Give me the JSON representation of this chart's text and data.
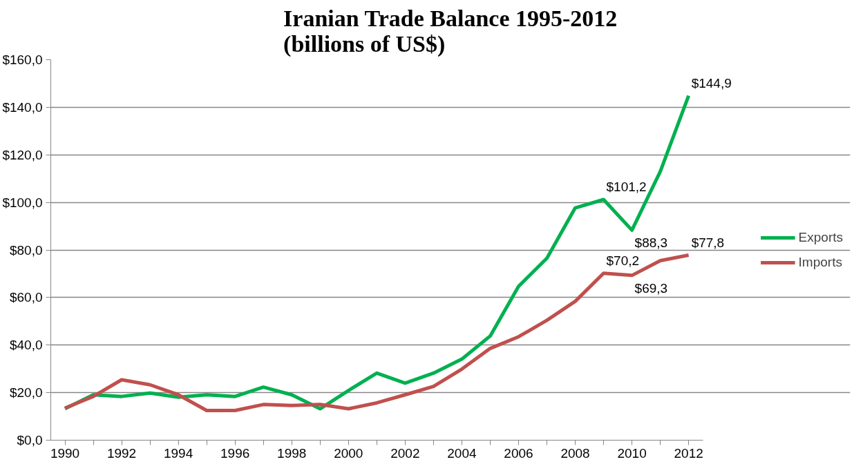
{
  "chart_data": {
    "type": "line",
    "title": "Iranian Trade Balance 1995-2012\n(billions of US$)",
    "categories": [
      "1990",
      null,
      "1992",
      null,
      "1994",
      null,
      "1996",
      null,
      "1998",
      null,
      "2000",
      null,
      "2002",
      null,
      "2004",
      null,
      "2006",
      null,
      "2008",
      null,
      "2010",
      null,
      "2012"
    ],
    "series": [
      {
        "name": "Exports",
        "color": "#00b050",
        "values": [
          13.2,
          19.1,
          18.4,
          19.8,
          18.1,
          19.1,
          18.4,
          22.3,
          19.1,
          13.2,
          20.9,
          28.2,
          24.0,
          28.2,
          34.1,
          43.8,
          64.7,
          76.5,
          97.7,
          101.2,
          88.3,
          113.0,
          144.9
        ],
        "value_labels": [
          null,
          null,
          null,
          null,
          null,
          null,
          null,
          null,
          null,
          null,
          null,
          null,
          null,
          null,
          null,
          null,
          null,
          null,
          null,
          "$101,2",
          "$88,3",
          null,
          "$144,9"
        ]
      },
      {
        "name": "Imports",
        "color": "#c0504d",
        "values": [
          13.5,
          18.4,
          25.4,
          23.3,
          19.1,
          12.5,
          12.5,
          15.0,
          14.6,
          15.0,
          13.2,
          15.7,
          19.1,
          22.6,
          29.9,
          38.6,
          43.5,
          50.4,
          58.4,
          70.2,
          69.3,
          75.5,
          77.8
        ],
        "value_labels": [
          null,
          null,
          null,
          null,
          null,
          null,
          null,
          null,
          null,
          null,
          null,
          null,
          null,
          null,
          null,
          null,
          null,
          null,
          null,
          "$70,2",
          "$69,3",
          null,
          "$77,8"
        ]
      }
    ],
    "ylim": [
      0,
      160
    ],
    "yticks": [
      {
        "value": 0,
        "label": "$0,0"
      },
      {
        "value": 20,
        "label": "$20,0"
      },
      {
        "value": 40,
        "label": "$40,0"
      },
      {
        "value": 60,
        "label": "$60,0"
      },
      {
        "value": 80,
        "label": "$80,0"
      },
      {
        "value": 100,
        "label": "$100,0"
      },
      {
        "value": 120,
        "label": "$120,0"
      },
      {
        "value": 140,
        "label": "$140,0"
      },
      {
        "value": 160,
        "label": "$160,0"
      }
    ],
    "grid": "y",
    "legend": "right",
    "marker": "none",
    "line_style": "solid"
  }
}
